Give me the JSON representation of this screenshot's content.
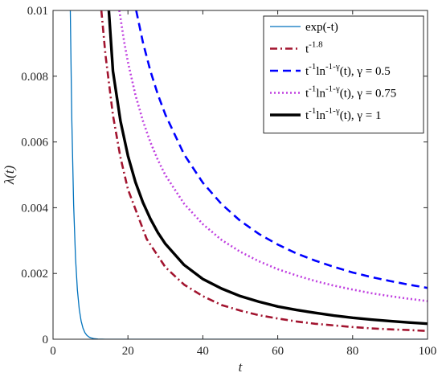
{
  "chart_data": {
    "type": "line",
    "xlabel": "t",
    "ylabel": "λ(t)",
    "xlim": [
      0,
      100
    ],
    "ylim": [
      0,
      0.01
    ],
    "x_ticks": [
      "0",
      "20",
      "40",
      "60",
      "80",
      "100"
    ],
    "y_ticks": [
      "0",
      "0.002",
      "0.004",
      "0.006",
      "0.008",
      "0.01"
    ],
    "grid": false,
    "legend_position": "top-right",
    "series": [
      {
        "name": "exp(-t)",
        "color": "#0072BD",
        "style": "solid-thin",
        "x": [
          4.6,
          5.0,
          5.5,
          6.0,
          6.5,
          7.0,
          7.5,
          8.0,
          8.5,
          9.0,
          9.5,
          10.0,
          11.0,
          12.0,
          14.0,
          20.0,
          40.0,
          60.0,
          80.0,
          100.0
        ],
        "y": [
          0.01005,
          0.006738,
          0.004087,
          0.002479,
          0.001503,
          0.000912,
          0.000553,
          0.000335,
          0.000203,
          0.000123,
          7.49e-05,
          4.54e-05,
          1.67e-05,
          6.14e-06,
          8.3e-07,
          2e-09,
          0,
          0,
          0,
          0
        ]
      },
      {
        "name": "t^{-1.8}",
        "color": "#A2142F",
        "style": "dash-dot",
        "x": [
          12.9,
          14,
          16,
          18,
          20,
          25,
          30,
          35,
          40,
          45,
          50,
          55,
          60,
          65,
          70,
          75,
          80,
          85,
          90,
          95,
          100
        ],
        "y": [
          0.01,
          0.00865,
          0.00681,
          0.00553,
          0.00456,
          0.00305,
          0.00219,
          0.00166,
          0.00131,
          0.00104,
          0.00087,
          0.00073,
          0.00063,
          0.00054,
          0.00047,
          0.00042,
          0.00037,
          0.00033,
          0.0003,
          0.00028,
          0.00025
        ]
      },
      {
        "name": "t^{-1}ln^{-1-γ}(t), γ = 0.5",
        "color": "#0000FF",
        "style": "dashed",
        "x": [
          22.2,
          24,
          26,
          28,
          30,
          35,
          40,
          45,
          50,
          55,
          60,
          65,
          70,
          75,
          80,
          85,
          90,
          95,
          100
        ],
        "y": [
          0.01,
          0.00903,
          0.00816,
          0.00744,
          0.00683,
          0.00562,
          0.00476,
          0.00411,
          0.0036,
          0.0032,
          0.00288,
          0.00261,
          0.00239,
          0.0022,
          0.00203,
          0.00189,
          0.00177,
          0.00166,
          0.00156
        ]
      },
      {
        "name": "t^{-1}ln^{-1-γ}(t), γ = 0.75",
        "color": "#C040E0",
        "style": "dotted",
        "x": [
          17.7,
          19,
          20,
          22,
          24,
          26,
          28,
          30,
          35,
          40,
          45,
          50,
          55,
          60,
          65,
          70,
          75,
          80,
          85,
          90,
          95,
          100
        ],
        "y": [
          0.01,
          0.00904,
          0.00843,
          0.00743,
          0.00664,
          0.00599,
          0.00545,
          0.00499,
          0.00412,
          0.0035,
          0.00302,
          0.00266,
          0.00237,
          0.00213,
          0.00194,
          0.00177,
          0.00163,
          0.00151,
          0.0014,
          0.00131,
          0.00123,
          0.00116
        ]
      },
      {
        "name": "t^{-1}ln^{-1-γ}(t), γ = 1",
        "color": "#000000",
        "style": "solid-thick",
        "x": [
          14.9,
          16,
          18,
          20,
          22,
          24,
          26,
          28,
          30,
          35,
          40,
          45,
          50,
          55,
          60,
          65,
          70,
          75,
          80,
          85,
          90,
          95,
          100
        ],
        "y": [
          0.01,
          0.00815,
          0.00664,
          0.00558,
          0.00478,
          0.00416,
          0.00366,
          0.00324,
          0.0029,
          0.00226,
          0.00183,
          0.00154,
          0.00131,
          0.00114,
          0.000995,
          0.000891,
          0.000801,
          0.000719,
          0.000651,
          0.000597,
          0.000551,
          0.00051,
          0.000472
        ]
      }
    ]
  }
}
